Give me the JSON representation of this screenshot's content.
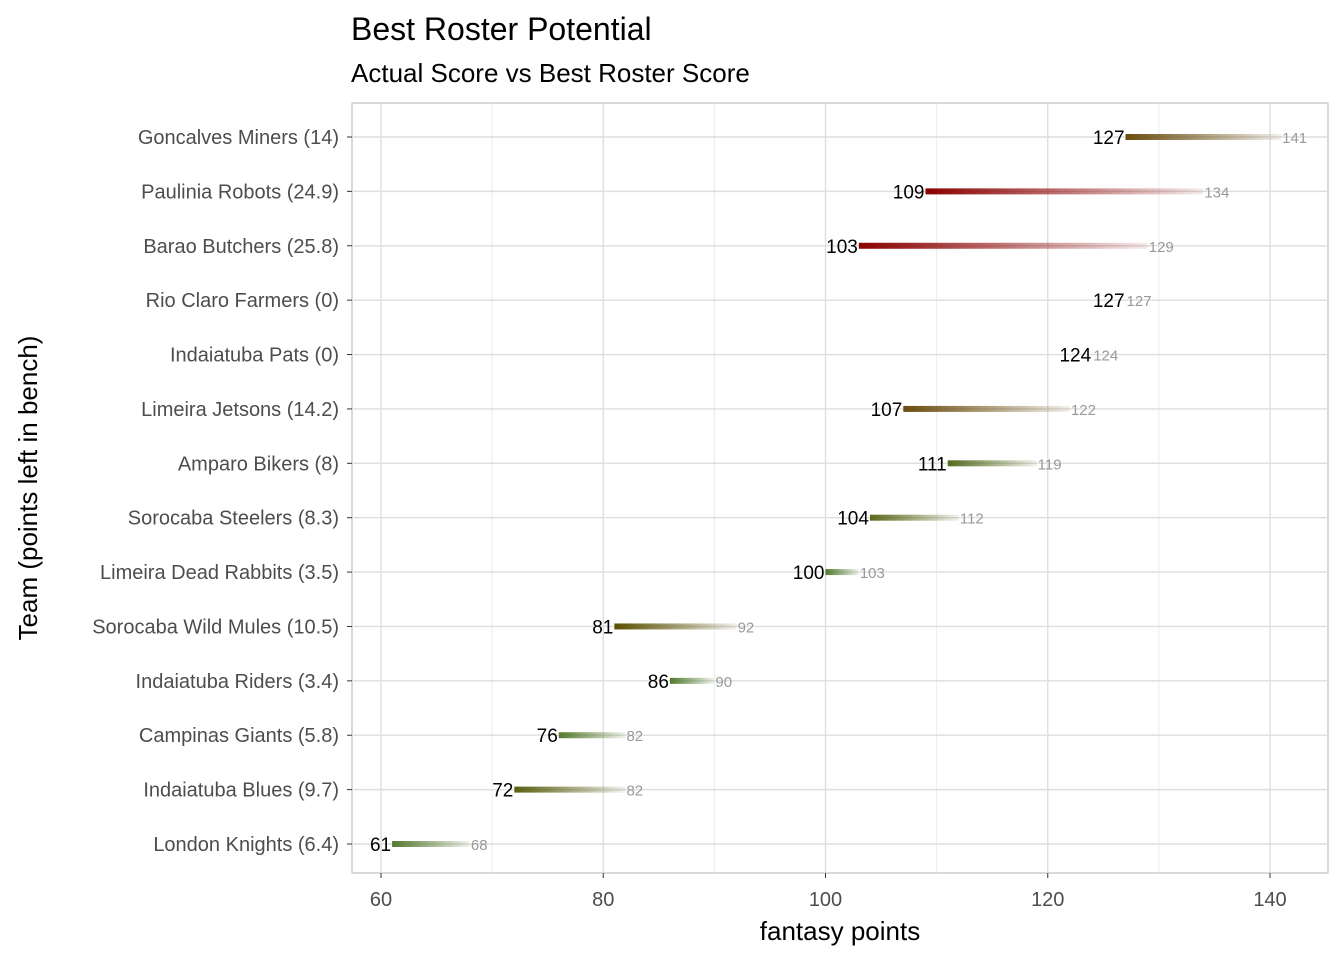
{
  "chart_data": {
    "type": "bar",
    "subtype": "dumbbell-gradient-segment",
    "title": "Best Roster Potential",
    "subtitle": "Actual Score vs Best Roster Score",
    "xlabel": "fantasy points",
    "ylabel": "Team (points left in bench)",
    "xlim": [
      57,
      144
    ],
    "xticks": [
      60,
      80,
      100,
      120,
      140
    ],
    "grid": true,
    "legend": "none",
    "categories": [
      "Goncalves Miners (14)",
      "Paulinia Robots (24.9)",
      "Barao Butchers (25.8)",
      "Rio Claro Farmers (0)",
      "Indaiatuba Pats (0)",
      "Limeira Jetsons (14.2)",
      "Amparo Bikers (8)",
      "Sorocaba Steelers (8.3)",
      "Limeira Dead Rabbits (3.5)",
      "Sorocaba Wild Mules (10.5)",
      "Indaiatuba Riders (3.4)",
      "Campinas Giants (5.8)",
      "Indaiatuba Blues (9.7)",
      "London Knights (6.4)"
    ],
    "series": [
      {
        "name": "actual",
        "values": [
          127,
          109,
          103,
          127,
          124,
          107,
          111,
          104,
          100,
          81,
          86,
          76,
          72,
          61
        ]
      },
      {
        "name": "best",
        "values": [
          141,
          134,
          129,
          127,
          124,
          122,
          119,
          112,
          103,
          92,
          90,
          82,
          82,
          68
        ]
      }
    ],
    "bench": [
      14,
      24.9,
      25.8,
      0,
      0,
      14.2,
      8,
      8.3,
      3.5,
      10.5,
      3.4,
      5.8,
      9.7,
      6.4
    ],
    "colors": [
      "#6a4c0e",
      "#8b0000",
      "#8b0000",
      "#6a4c0e",
      "#6a4c0e",
      "#6a4c0e",
      "#556b1f",
      "#5a6a1a",
      "#4f7a2e",
      "#5a5000",
      "#4f7a2e",
      "#557a2e",
      "#5a6010",
      "#557a2e"
    ],
    "label_colors": {
      "actual": "#000000",
      "best": "#999999"
    }
  }
}
